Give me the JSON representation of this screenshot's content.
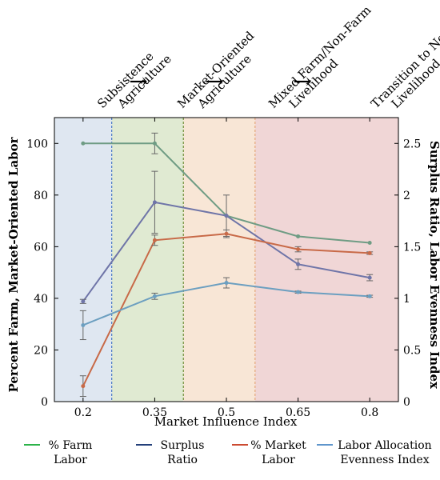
{
  "chart_data": {
    "type": "line",
    "xlabel": "Market Influence Index",
    "ylabel_left": "Percent Farm, Market-Oriented Labor",
    "ylabel_right": "Surplus Ratio, Labor Evenness Index",
    "x": [
      0.2,
      0.35,
      0.5,
      0.65,
      0.8
    ],
    "x_ticks": [
      "0.2",
      "0.35",
      "0.5",
      "0.65",
      "0.8"
    ],
    "ylim_left": [
      0,
      110
    ],
    "ylim_right": [
      0,
      2.75
    ],
    "y_ticks_left": [
      "0",
      "20",
      "40",
      "60",
      "80",
      "100"
    ],
    "y_ticks_right": [
      "0",
      "0.5",
      "1",
      "1.5",
      "2",
      "2.5"
    ],
    "grid": false,
    "phases": [
      {
        "label_lines": [
          "Subsistence",
          "Agriculture"
        ],
        "x_start": 0.14,
        "x_end": 0.26,
        "fill": "#dfe7f1",
        "border": "#4a78c6"
      },
      {
        "label_lines": [
          "Market-Oriented",
          "Agriculture"
        ],
        "x_start": 0.26,
        "x_end": 0.41,
        "fill": "#e0ead2",
        "border": "#6f8f3a"
      },
      {
        "label_lines": [
          "Mixed Farm/Non-Farm",
          "Livelihood"
        ],
        "x_start": 0.41,
        "x_end": 0.56,
        "fill": "#f8e6d6",
        "border": "#e6a77a"
      },
      {
        "label_lines": [
          "Transition to Non-Farm",
          "Livelihood"
        ],
        "x_start": 0.56,
        "x_end": 0.86,
        "fill": "#f0d6d6",
        "border": "#d9a0a0"
      }
    ],
    "arrows": [
      "→",
      "→",
      "→"
    ],
    "series": [
      {
        "name": "% Farm Labor",
        "legend_lines": [
          "% Farm",
          "Labor"
        ],
        "axis": "left",
        "color": "#6f9c84",
        "legend_color": "#2db34a",
        "values": [
          100,
          100,
          72,
          64,
          61.5
        ],
        "err": [
          0,
          4,
          0,
          0,
          0
        ]
      },
      {
        "name": "Surplus Ratio",
        "legend_lines": [
          "Surplus",
          "Ratio"
        ],
        "axis": "right",
        "color": "#6f75a8",
        "legend_color": "#24407a",
        "values": [
          0.97,
          1.93,
          1.8,
          1.33,
          1.2
        ],
        "err": [
          0.02,
          0.3,
          0.2,
          0.05,
          0.03
        ]
      },
      {
        "name": "% Market Labor",
        "legend_lines": [
          "% Market",
          "Labor"
        ],
        "axis": "left",
        "color": "#c86a48",
        "legend_color": "#cc4b32",
        "values": [
          6,
          62.5,
          65,
          59,
          57.5
        ],
        "err": [
          4,
          2,
          1.5,
          1,
          0.5
        ]
      },
      {
        "name": "Labor Allocation Evenness Index",
        "legend_lines": [
          "Labor Allocation",
          "Evenness Index"
        ],
        "axis": "right",
        "color": "#6c9fc0",
        "legend_color": "#5f96cc",
        "values": [
          0.74,
          1.02,
          1.15,
          1.06,
          1.02
        ],
        "err": [
          0.14,
          0.03,
          0.05,
          0.01,
          0.01
        ]
      }
    ]
  }
}
